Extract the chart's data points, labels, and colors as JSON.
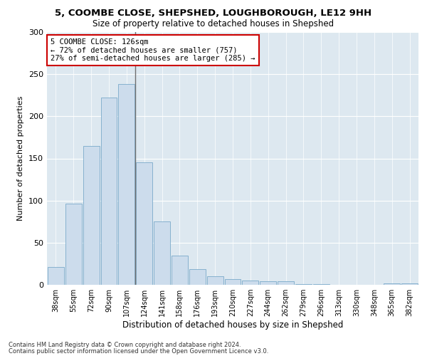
{
  "title1": "5, COOMBE CLOSE, SHEPSHED, LOUGHBOROUGH, LE12 9HH",
  "title2": "Size of property relative to detached houses in Shepshed",
  "xlabel": "Distribution of detached houses by size in Shepshed",
  "ylabel": "Number of detached properties",
  "bar_labels": [
    "38sqm",
    "55sqm",
    "72sqm",
    "90sqm",
    "107sqm",
    "124sqm",
    "141sqm",
    "158sqm",
    "176sqm",
    "193sqm",
    "210sqm",
    "227sqm",
    "244sqm",
    "262sqm",
    "279sqm",
    "296sqm",
    "313sqm",
    "330sqm",
    "348sqm",
    "365sqm",
    "382sqm"
  ],
  "bar_values": [
    21,
    96,
    165,
    222,
    238,
    145,
    75,
    35,
    19,
    10,
    7,
    5,
    4,
    4,
    1,
    1,
    0,
    0,
    0,
    2,
    2
  ],
  "highlight_index": 4,
  "bar_color": "#ccdcec",
  "bar_edge_color": "#7aaaca",
  "highlight_line_color": "#707070",
  "annotation_text": "5 COOMBE CLOSE: 126sqm\n← 72% of detached houses are smaller (757)\n27% of semi-detached houses are larger (285) →",
  "annotation_box_color": "#ffffff",
  "annotation_box_edge": "#cc0000",
  "ylim": [
    0,
    300
  ],
  "yticks": [
    0,
    50,
    100,
    150,
    200,
    250,
    300
  ],
  "footer1": "Contains HM Land Registry data © Crown copyright and database right 2024.",
  "footer2": "Contains public sector information licensed under the Open Government Licence v3.0.",
  "background_color": "#dde8f0"
}
